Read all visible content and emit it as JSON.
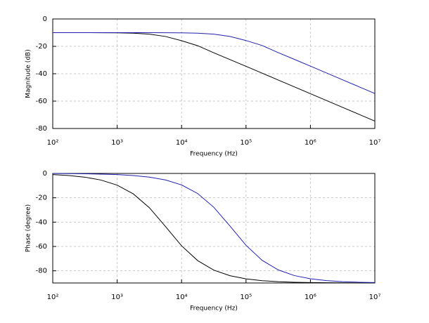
{
  "chart_data": [
    {
      "type": "line",
      "ylabel": "Magnitude (dB)",
      "xlabel": "Frequency (Hz)",
      "xscale": "log",
      "grid": true,
      "xlim": [
        100,
        10000000
      ],
      "ylim": [
        -80,
        0
      ],
      "xticks": [
        {
          "value": 100,
          "label": "10²"
        },
        {
          "value": 1000,
          "label": "10³"
        },
        {
          "value": 10000,
          "label": "10⁴"
        },
        {
          "value": 100000,
          "label": "10⁵"
        },
        {
          "value": 1000000,
          "label": "10⁶"
        },
        {
          "value": 10000000,
          "label": "10⁷"
        }
      ],
      "yticks": [
        -80,
        -60,
        -40,
        -20,
        0
      ],
      "x": [
        100,
        178,
        316,
        562,
        1000,
        1778,
        3162,
        5623,
        10000,
        17783,
        31623,
        56234,
        100000,
        177828,
        316228,
        562341,
        1000000,
        1778279,
        3162278,
        5623413,
        10000000
      ],
      "series": [
        {
          "color": "#000000",
          "values": [
            -10.0,
            -10.0,
            -10.01,
            -10.04,
            -10.12,
            -10.38,
            -11.09,
            -12.79,
            -15.89,
            -19.54,
            -24.73,
            -29.63,
            -34.59,
            -39.59,
            -44.58,
            -49.58,
            -54.58,
            -59.58,
            -64.58,
            -69.58,
            -74.58
          ]
        },
        {
          "color": "#2020b0",
          "values": [
            -10.0,
            -10.0,
            -10.0,
            -10.0,
            -10.0,
            -10.0,
            -10.01,
            -10.04,
            -10.12,
            -10.37,
            -11.07,
            -12.76,
            -15.75,
            -19.4,
            -24.59,
            -29.49,
            -34.45,
            -39.44,
            -44.44,
            -49.44,
            -54.44
          ]
        }
      ]
    },
    {
      "type": "line",
      "ylabel": "Phase (degree)",
      "xlabel": "Frequency (Hz)",
      "xscale": "log",
      "grid": true,
      "xlim": [
        100,
        10000000
      ],
      "ylim": [
        -90,
        0
      ],
      "xticks": [
        {
          "value": 100,
          "label": "10²"
        },
        {
          "value": 1000,
          "label": "10³"
        },
        {
          "value": 10000,
          "label": "10⁴"
        },
        {
          "value": 100000,
          "label": "10⁵"
        },
        {
          "value": 1000000,
          "label": "10⁶"
        },
        {
          "value": 10000000,
          "label": "10⁷"
        }
      ],
      "yticks": [
        -80,
        -60,
        -40,
        -20,
        0
      ],
      "x": [
        100,
        178,
        316,
        562,
        1000,
        1778,
        3162,
        5623,
        10000,
        17783,
        31623,
        56234,
        100000,
        177828,
        316228,
        562341,
        1000000,
        1778279,
        3162278,
        5623413,
        10000000
      ],
      "series": [
        {
          "color": "#000000",
          "values": [
            -0.97,
            -1.73,
            -3.07,
            -5.44,
            -9.62,
            -16.77,
            -28.19,
            -43.62,
            -59.46,
            -71.64,
            -79.43,
            -84.01,
            -86.62,
            -88.1,
            -88.93,
            -89.4,
            -89.66,
            -89.81,
            -89.89,
            -89.94,
            -89.97
          ]
        },
        {
          "color": "#2020b0",
          "values": [
            -0.1,
            -0.17,
            -0.3,
            -0.54,
            -0.95,
            -1.7,
            -3.02,
            -5.35,
            -9.46,
            -16.51,
            -27.79,
            -43.14,
            -59.04,
            -71.36,
            -79.26,
            -83.91,
            -86.57,
            -88.07,
            -88.91,
            -89.39,
            -89.66
          ]
        }
      ]
    }
  ]
}
